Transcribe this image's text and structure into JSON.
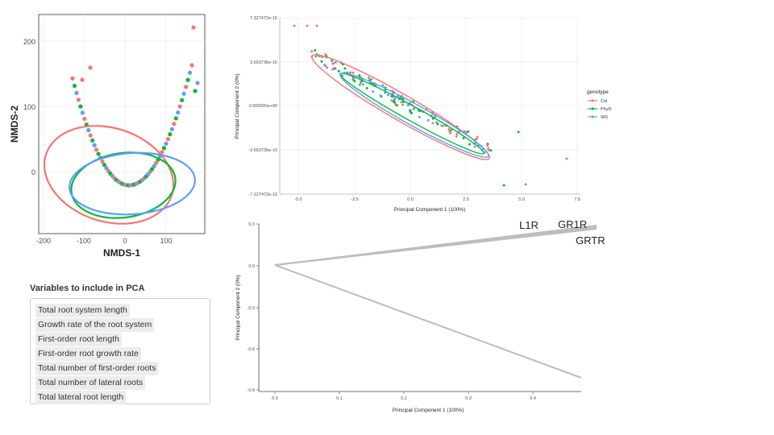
{
  "nmds": {
    "xlabel": "NMDS-1",
    "ylabel": "NMDS-2",
    "xticks": [
      "-200",
      "-100",
      "0",
      "100"
    ],
    "yticks": [
      "0",
      "100",
      "200"
    ]
  },
  "pca": {
    "xlabel": "Principal Component 1 (100%)",
    "ylabel": "Principal Component 2 (0%)",
    "xticks": [
      "-5.0",
      "-2.5",
      "0.0",
      "2.5",
      "5.0",
      "7.5"
    ],
    "yticks": [
      "7.327472e-16",
      "3.663736e-16",
      "0.000000e+00",
      "-3.663736e-16",
      "-7.327472e-16"
    ],
    "legend_title": "genotype",
    "legend": [
      "Col",
      "PhyD",
      "WS"
    ]
  },
  "loadings": {
    "xlabel": "Principal Component 1 (100%)",
    "ylabel": "Principal Component 2 (0%)",
    "xticks": [
      "0.0",
      "0.1",
      "0.2",
      "0.3",
      "0.4"
    ],
    "yticks": [
      "0.3",
      "0.0",
      "-0.3",
      "-0.6",
      "-0.9"
    ],
    "labels": [
      "L1R",
      "GR1R",
      "GRTR"
    ]
  },
  "variables": {
    "title": "Variables to include in PCA",
    "items": [
      "Total root system length",
      "Growth rate of the root system",
      "First-order root length",
      "First-order root growth rate",
      "Total number of first-order roots",
      "Total number of lateral roots",
      "Total lateral root length"
    ]
  },
  "colors": {
    "col": "#F8766D",
    "phyd": "#00BA38",
    "ws": "#619CFF",
    "arrow": "#bdbdbd"
  }
}
